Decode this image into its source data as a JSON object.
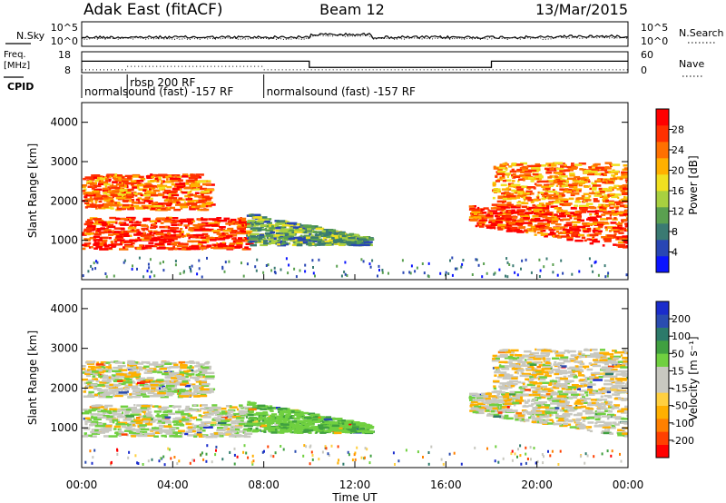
{
  "header": {
    "station": "Adak East (fitACF)",
    "beam": "Beam 12",
    "date": "13/Mar/2015"
  },
  "noise_panel": {
    "left_label": "N.Sky",
    "right_label": "N.Search",
    "left_ticks": [
      "10^5",
      "10^0"
    ],
    "right_ticks": [
      "10^5",
      "10^0"
    ]
  },
  "freq_panel": {
    "left_label_1": "Freq.",
    "left_label_2": "[MHz]",
    "left_ticks": [
      "18",
      "8"
    ],
    "right_label": "Nave",
    "right_ticks": [
      "60",
      "0"
    ]
  },
  "cpid": {
    "label": "CPID",
    "segments": [
      {
        "start_h": 0,
        "text": "normalsound (fast) -157 RF",
        "row": 2
      },
      {
        "start_h": 2,
        "text": "rbsp 200 RF",
        "row": 1
      },
      {
        "start_h": 8,
        "text": "normalsound (fast) -157 RF",
        "row": 2
      }
    ]
  },
  "power_panel": {
    "ylabel": "Slant Range [km]",
    "yticks": [
      "1000",
      "2000",
      "3000",
      "4000"
    ],
    "colorbar_label": "Power [dB]",
    "colorbar_ticks": [
      "4",
      "8",
      "12",
      "16",
      "20",
      "24",
      "28"
    ],
    "colorbar_colors": [
      "#0a14ff",
      "#2846b4",
      "#3a7a72",
      "#5aa050",
      "#a8d040",
      "#f0e020",
      "#ffb000",
      "#ff7000",
      "#ff3000",
      "#ff0000"
    ]
  },
  "velocity_panel": {
    "ylabel": "Slant Range [km]",
    "yticks": [
      "1000",
      "2000",
      "3000",
      "4000"
    ],
    "colorbar_label": "Velocity [m s⁻¹]",
    "colorbar_ticks": [
      "-200",
      "-100",
      "-50",
      "-15",
      "15",
      "50",
      "100",
      "200"
    ],
    "colorbar_colors": [
      "#ff0000",
      "#ff4000",
      "#ff8000",
      "#ffb000",
      "#ffd040",
      "#c8c8c0",
      "#c8c8c0",
      "#70d040",
      "#40a040",
      "#2c7a6a",
      "#2a4cb0",
      "#1a2ccc"
    ]
  },
  "xaxis": {
    "label": "Time UT",
    "ticks": [
      "00:00",
      "04:00",
      "08:00",
      "12:00",
      "16:00",
      "20:00",
      "00:00"
    ]
  },
  "chart_data": {
    "type": "heatmap",
    "title": "Adak East (fitACF) Beam 12 13/Mar/2015",
    "xlabel": "Time UT",
    "ylabel": "Slant Range [km]",
    "xlim_hours": [
      0,
      24
    ],
    "ylim_km": [
      0,
      4500
    ],
    "frequency_mhz": [
      {
        "start_h": 0,
        "end_h": 10,
        "value": 13.5
      },
      {
        "start_h": 10,
        "end_h": 18,
        "value": 10.5
      },
      {
        "start_h": 18,
        "end_h": 24,
        "value": 13.5
      }
    ],
    "nave_dotted": [
      {
        "start_h": 0,
        "end_h": 2,
        "value": 8
      },
      {
        "start_h": 2,
        "end_h": 8,
        "value": 18
      },
      {
        "start_h": 8,
        "end_h": 24,
        "value": 8
      }
    ],
    "echo_regions": [
      {
        "name": "evening-lower",
        "t0": 0.0,
        "t1": 7.2,
        "r0": 800,
        "r1": 1600,
        "power_db": 27,
        "velocity": 5
      },
      {
        "name": "evening-upper",
        "t0": 0.0,
        "t1": 5.5,
        "r0": 1800,
        "r1": 2700,
        "power_db": 24,
        "velocity": 0
      },
      {
        "name": "post-midnight-descent",
        "t0": 7.2,
        "t1": 12.5,
        "r0": 800,
        "r1": 1700,
        "power_db": 10,
        "velocity": 40
      },
      {
        "name": "morning-lower",
        "t0": 17.0,
        "t1": 24.0,
        "r0": 800,
        "r1": 1900,
        "power_db": 26,
        "velocity": 0
      },
      {
        "name": "morning-upper",
        "t0": 18.0,
        "t1": 24.0,
        "r0": 1900,
        "r1": 3000,
        "power_db": 22,
        "velocity": -5
      }
    ]
  }
}
